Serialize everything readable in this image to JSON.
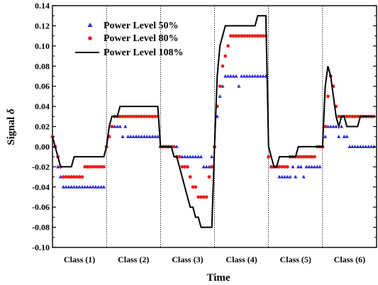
{
  "chart_data": {
    "type": "scatter",
    "title": "",
    "xlabel": "Time",
    "ylabel": "Signal δ",
    "ylabel_parts": {
      "prefix": "Signal ",
      "symbol": "δ"
    },
    "ylim": [
      -0.1,
      0.14
    ],
    "yticks": [
      -0.1,
      -0.08,
      -0.06,
      -0.04,
      -0.02,
      0.0,
      0.02,
      0.04,
      0.06,
      0.08,
      0.1,
      0.12,
      0.14
    ],
    "ytick_labels": [
      "-0.10",
      "-0.08",
      "-0.06",
      "-0.04",
      "-0.02",
      "0.00",
      "0.02",
      "0.04",
      "0.06",
      "0.08",
      "0.10",
      "0.12",
      "0.14"
    ],
    "xlim": [
      0,
      120
    ],
    "class_boundaries": [
      20,
      40,
      60,
      80,
      100
    ],
    "classes": [
      "Class (1)",
      "Class (2)",
      "Class (3)",
      "Class (4)",
      "Class (5)",
      "Class (6)"
    ],
    "legend": {
      "placement": "top-left",
      "entries": [
        "Power Level 50%",
        "Power Level 80%",
        "Power Level 108%"
      ]
    },
    "colors": {
      "blue": "#2b2bd6",
      "red": "#ee1c1c",
      "black": "#000000"
    },
    "series": [
      {
        "name": "Power Level 50%",
        "marker": "triangle",
        "color": "#2b2bd6",
        "x": [
          0,
          1,
          2,
          3,
          4,
          5,
          6,
          7,
          8,
          9,
          10,
          11,
          12,
          13,
          14,
          15,
          16,
          17,
          18,
          19,
          20,
          21,
          22,
          23,
          24,
          25,
          26,
          27,
          28,
          29,
          30,
          31,
          32,
          33,
          34,
          35,
          36,
          37,
          38,
          39,
          40,
          41,
          42,
          43,
          44,
          45,
          46,
          47,
          48,
          49,
          50,
          51,
          52,
          53,
          54,
          55,
          56,
          57,
          58,
          59,
          60,
          61,
          62,
          63,
          64,
          65,
          66,
          67,
          68,
          69,
          70,
          71,
          72,
          73,
          74,
          75,
          76,
          77,
          78,
          79,
          80,
          81,
          82,
          83,
          84,
          85,
          86,
          87,
          88,
          89,
          90,
          91,
          92,
          93,
          94,
          95,
          96,
          97,
          98,
          99,
          100,
          101,
          102,
          103,
          104,
          105,
          106,
          107,
          108,
          109,
          110,
          111,
          112,
          113,
          114,
          115,
          116,
          117,
          118,
          119
        ],
        "y": [
          0.01,
          0.0,
          -0.02,
          -0.03,
          -0.04,
          -0.04,
          -0.04,
          -0.04,
          -0.04,
          -0.04,
          -0.04,
          -0.04,
          -0.04,
          -0.04,
          -0.04,
          -0.04,
          -0.04,
          -0.04,
          -0.04,
          -0.04,
          0.0,
          0.01,
          0.02,
          0.02,
          0.02,
          0.02,
          0.01,
          0.02,
          0.01,
          0.01,
          0.01,
          0.01,
          0.01,
          0.01,
          0.01,
          0.01,
          0.01,
          0.01,
          0.01,
          0.01,
          0.0,
          0.0,
          0.0,
          0.0,
          0.0,
          0.0,
          0.0,
          -0.01,
          -0.01,
          -0.01,
          -0.01,
          -0.01,
          -0.01,
          -0.01,
          -0.01,
          -0.01,
          -0.02,
          -0.02,
          -0.02,
          -0.01,
          0.0,
          0.03,
          0.05,
          0.06,
          0.07,
          0.07,
          0.07,
          0.07,
          0.07,
          0.06,
          0.07,
          0.07,
          0.07,
          0.07,
          0.07,
          0.07,
          0.07,
          0.07,
          0.07,
          0.07,
          -0.01,
          -0.02,
          -0.02,
          -0.02,
          -0.03,
          -0.03,
          -0.03,
          -0.03,
          -0.03,
          -0.02,
          -0.03,
          -0.02,
          -0.02,
          -0.03,
          -0.02,
          -0.02,
          -0.02,
          -0.02,
          -0.02,
          -0.02,
          0.0,
          0.01,
          0.02,
          0.02,
          0.02,
          0.02,
          0.01,
          0.02,
          0.01,
          0.01,
          0.0,
          0.0,
          0.0,
          0.0,
          0.0,
          0.0,
          0.0,
          0.0,
          0.0,
          0.0
        ]
      },
      {
        "name": "Power Level 80%",
        "marker": "circle",
        "color": "#ee1c1c",
        "x": [
          0,
          1,
          2,
          3,
          4,
          5,
          6,
          7,
          8,
          9,
          10,
          11,
          12,
          13,
          14,
          15,
          16,
          17,
          18,
          19,
          20,
          21,
          22,
          23,
          24,
          25,
          26,
          27,
          28,
          29,
          30,
          31,
          32,
          33,
          34,
          35,
          36,
          37,
          38,
          39,
          40,
          41,
          42,
          43,
          44,
          45,
          46,
          47,
          48,
          49,
          50,
          51,
          52,
          53,
          54,
          55,
          56,
          57,
          58,
          59,
          60,
          61,
          62,
          63,
          64,
          65,
          66,
          67,
          68,
          69,
          70,
          71,
          72,
          73,
          74,
          75,
          76,
          77,
          78,
          79,
          80,
          81,
          82,
          83,
          84,
          85,
          86,
          87,
          88,
          89,
          90,
          91,
          92,
          93,
          94,
          95,
          96,
          97,
          98,
          99,
          100,
          101,
          102,
          103,
          104,
          105,
          106,
          107,
          108,
          109,
          110,
          111,
          112,
          113,
          114,
          115,
          116,
          117,
          118,
          119
        ],
        "y": [
          0.01,
          0.0,
          -0.01,
          -0.02,
          -0.03,
          -0.03,
          -0.03,
          -0.03,
          -0.03,
          -0.03,
          -0.03,
          -0.03,
          -0.02,
          -0.02,
          -0.02,
          -0.02,
          -0.02,
          -0.02,
          -0.02,
          -0.02,
          0.0,
          0.01,
          0.02,
          0.03,
          0.03,
          0.03,
          0.03,
          0.03,
          0.03,
          0.03,
          0.03,
          0.03,
          0.03,
          0.03,
          0.03,
          0.03,
          0.03,
          0.03,
          0.03,
          0.03,
          0.0,
          0.0,
          0.0,
          0.0,
          0.0,
          0.0,
          -0.01,
          -0.01,
          -0.02,
          -0.02,
          -0.02,
          -0.03,
          -0.04,
          -0.04,
          -0.05,
          -0.05,
          -0.05,
          -0.05,
          -0.03,
          -0.02,
          0.0,
          0.04,
          0.06,
          0.08,
          0.09,
          0.1,
          0.11,
          0.11,
          0.11,
          0.11,
          0.11,
          0.11,
          0.11,
          0.11,
          0.11,
          0.11,
          0.11,
          0.11,
          0.11,
          0.11,
          -0.01,
          -0.02,
          -0.02,
          -0.02,
          -0.02,
          -0.02,
          -0.02,
          -0.02,
          -0.01,
          -0.01,
          -0.01,
          -0.01,
          -0.01,
          -0.01,
          -0.01,
          -0.01,
          -0.01,
          -0.01,
          0.0,
          0.0,
          0.0,
          0.02,
          0.05,
          0.07,
          0.06,
          0.04,
          0.03,
          0.03,
          0.03,
          0.03,
          0.03,
          0.03,
          0.03,
          0.03,
          0.03,
          0.03,
          0.03,
          0.03,
          0.03,
          0.03
        ]
      },
      {
        "name": "Power Level 108%",
        "marker": "line",
        "color": "#000000",
        "x": [
          0,
          1,
          2,
          3,
          4,
          5,
          6,
          7,
          8,
          9,
          10,
          11,
          12,
          13,
          14,
          15,
          16,
          17,
          18,
          19,
          20,
          21,
          22,
          23,
          24,
          25,
          26,
          27,
          28,
          29,
          30,
          31,
          32,
          33,
          34,
          35,
          36,
          37,
          38,
          39,
          40,
          41,
          42,
          43,
          44,
          45,
          46,
          47,
          48,
          49,
          50,
          51,
          52,
          53,
          54,
          55,
          56,
          57,
          58,
          59,
          60,
          61,
          62,
          63,
          64,
          65,
          66,
          67,
          68,
          69,
          70,
          71,
          72,
          73,
          74,
          75,
          76,
          77,
          78,
          79,
          80,
          81,
          82,
          83,
          84,
          85,
          86,
          87,
          88,
          89,
          90,
          91,
          92,
          93,
          94,
          95,
          96,
          97,
          98,
          99,
          100,
          101,
          102,
          103,
          104,
          105,
          106,
          107,
          108,
          109,
          110,
          111,
          112,
          113,
          114,
          115,
          116,
          117,
          118,
          119
        ],
        "y": [
          0.01,
          0.0,
          -0.01,
          -0.02,
          -0.02,
          -0.02,
          -0.02,
          -0.02,
          -0.01,
          -0.01,
          -0.01,
          -0.01,
          -0.01,
          -0.01,
          -0.01,
          -0.01,
          -0.01,
          -0.01,
          -0.01,
          -0.01,
          0.0,
          0.02,
          0.03,
          0.03,
          0.03,
          0.04,
          0.04,
          0.04,
          0.04,
          0.04,
          0.04,
          0.04,
          0.04,
          0.04,
          0.04,
          0.04,
          0.04,
          0.04,
          0.04,
          0.04,
          0.0,
          0.0,
          0.0,
          0.0,
          0.0,
          -0.01,
          -0.01,
          -0.02,
          -0.03,
          -0.04,
          -0.05,
          -0.06,
          -0.06,
          -0.07,
          -0.07,
          -0.08,
          -0.08,
          -0.08,
          -0.08,
          -0.08,
          0.0,
          0.07,
          0.1,
          0.11,
          0.12,
          0.12,
          0.12,
          0.12,
          0.12,
          0.12,
          0.12,
          0.12,
          0.12,
          0.12,
          0.12,
          0.12,
          0.13,
          0.13,
          0.13,
          0.13,
          0.0,
          -0.01,
          -0.02,
          -0.02,
          -0.01,
          -0.01,
          -0.01,
          -0.01,
          -0.01,
          -0.01,
          -0.01,
          0.0,
          0.0,
          0.0,
          0.0,
          0.0,
          0.0,
          0.0,
          0.0,
          0.0,
          0.0,
          0.06,
          0.08,
          0.07,
          0.05,
          0.03,
          0.02,
          0.03,
          0.03,
          0.02,
          0.02,
          0.02,
          0.02,
          0.02,
          0.03,
          0.03,
          0.03,
          0.03,
          0.03,
          0.03
        ]
      }
    ]
  }
}
